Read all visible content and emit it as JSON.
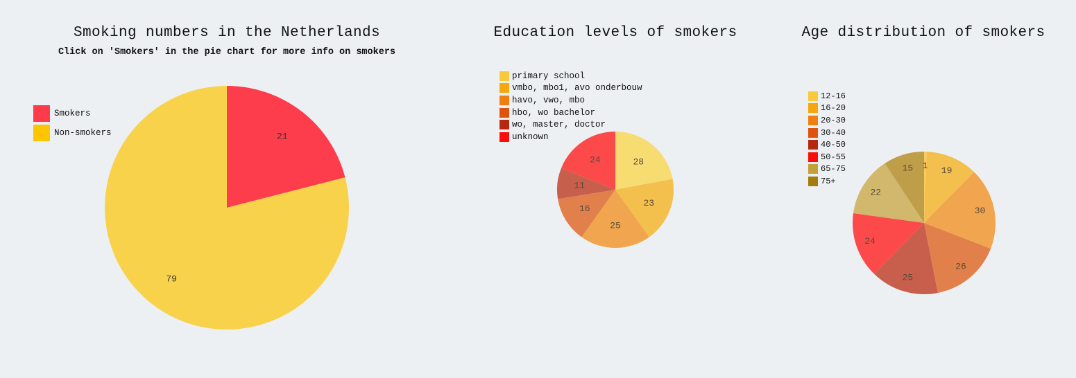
{
  "chart_data": [
    {
      "type": "pie",
      "title": "Smoking numbers in the Netherlands",
      "subtitle": "Click on 'Smokers' in the pie chart for more info on smokers",
      "categories": [
        "Smokers",
        "Non-smokers"
      ],
      "values": [
        21,
        79
      ],
      "labels": [
        "21",
        "79"
      ],
      "legend_colors": [
        "#fe3b4b",
        "#fcc500"
      ],
      "slice_colors": [
        "#fe3d4c",
        "#f9d24b"
      ],
      "legend_position": "left",
      "label_color": "#333333"
    },
    {
      "type": "pie",
      "title": "Education levels of smokers",
      "categories": [
        "primary school",
        "vmbo, mbo1, avo onderbouw",
        "havo, vwo, mbo",
        "hbo, wo bachelor",
        "wo, master, doctor",
        "unknown"
      ],
      "values": [
        28,
        23,
        25,
        16,
        11,
        24
      ],
      "labels": [
        "28",
        "23",
        "25",
        "16",
        "11",
        "24"
      ],
      "legend_colors": [
        "#f8c93a",
        "#f5a80d",
        "#ef7f10",
        "#e0530f",
        "#b72710",
        "#fb0d0d"
      ],
      "slice_colors": [
        "#f7dc72",
        "#f3bf4d",
        "#f0a54e",
        "#e2804b",
        "#c75f4c",
        "#fc4a4a"
      ],
      "legend_position": "top-left",
      "label_color": "#5a4a3a"
    },
    {
      "type": "pie",
      "title": "Age distribution of smokers",
      "categories": [
        "12-16",
        "16-20",
        "20-30",
        "30-40",
        "40-50",
        "50-55",
        "65-75",
        "75+"
      ],
      "values": [
        1,
        19,
        30,
        26,
        25,
        24,
        22,
        15
      ],
      "labels": [
        "1",
        "19",
        "30",
        "26",
        "25",
        "24",
        "22",
        "15"
      ],
      "legend_colors": [
        "#f8c93a",
        "#f5a80d",
        "#ef7f10",
        "#e0530f",
        "#b72710",
        "#fb0d0d",
        "#c2a03a",
        "#a47b0e"
      ],
      "slice_colors": [
        "#f6cb5a",
        "#f3bf4d",
        "#f0a54e",
        "#e2804b",
        "#c75f4c",
        "#fc4a4a",
        "#d1b86c",
        "#bf9e4a"
      ],
      "legend_position": "top-left",
      "label_color": "#5a4a3a"
    }
  ]
}
